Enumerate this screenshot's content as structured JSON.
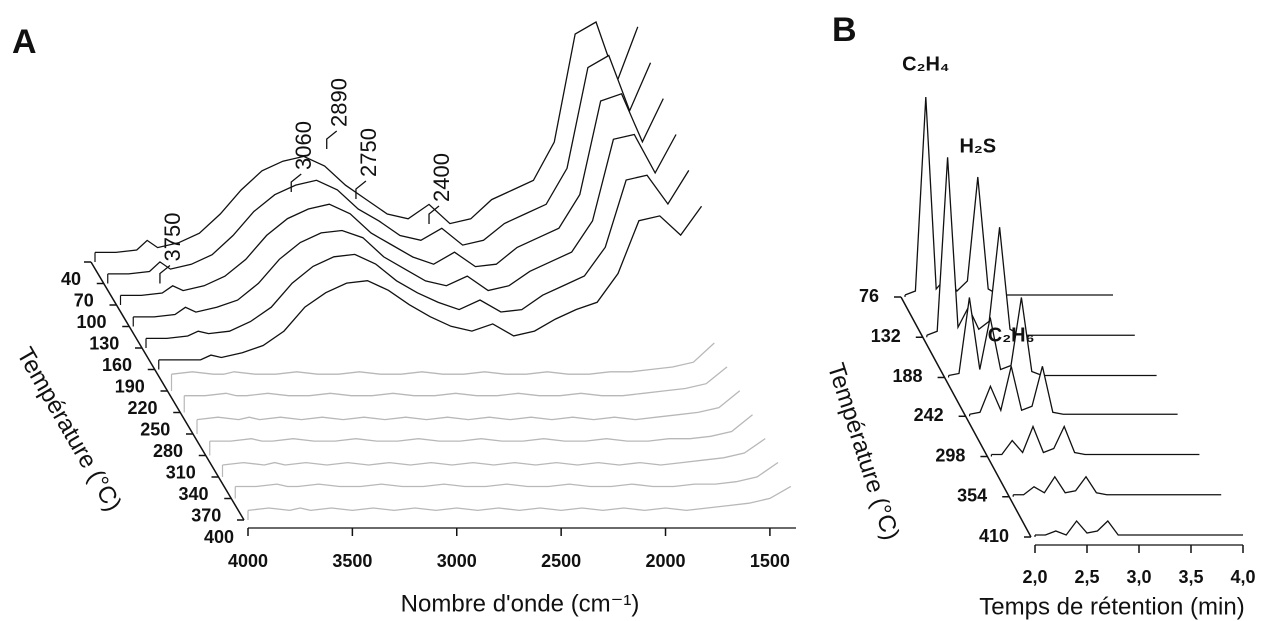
{
  "chart_data": [
    {
      "type": "waterfall",
      "title": "A",
      "xlabel": "Nombre d'onde (cm⁻¹)",
      "zlabel": "Température (°C)",
      "annotations": [
        {
          "text": "3750",
          "x": 3750
        },
        {
          "text": "3060",
          "x": 3060
        },
        {
          "text": "2890",
          "x": 2890
        },
        {
          "text": "2750",
          "x": 2750
        },
        {
          "text": "2400",
          "x": 2400
        }
      ],
      "x": [
        4000,
        3900,
        3800,
        3750,
        3700,
        3600,
        3500,
        3400,
        3300,
        3200,
        3100,
        3000,
        2900,
        2800,
        2700,
        2600,
        2500,
        2400,
        2300,
        2200,
        2100,
        2000,
        1900,
        1800,
        1700,
        1600,
        1500,
        1400
      ],
      "xlim": [
        4000,
        1375
      ],
      "xticks": [
        4000,
        3500,
        3000,
        2500,
        2000,
        1500
      ],
      "zlim": [
        40,
        400
      ],
      "zticks": [
        40,
        70,
        100,
        130,
        160,
        190,
        220,
        250,
        280,
        310,
        340,
        370,
        400
      ],
      "vlim": [
        0,
        100
      ],
      "series": [
        {
          "z": 40,
          "color": "#111111",
          "values": [
            4,
            4,
            5,
            9,
            6,
            8,
            12,
            20,
            30,
            38,
            42,
            44,
            40,
            32,
            26,
            20,
            18,
            24,
            16,
            18,
            26,
            30,
            34,
            50,
            95,
            100,
            75,
            98
          ]
        },
        {
          "z": 70,
          "color": "#111111",
          "values": [
            4,
            4,
            5,
            9,
            6,
            8,
            12,
            20,
            30,
            37,
            41,
            43,
            39,
            31,
            26,
            20,
            18,
            23,
            16,
            18,
            25,
            29,
            33,
            48,
            90,
            95,
            72,
            92
          ]
        },
        {
          "z": 100,
          "color": "#111111",
          "values": [
            4,
            4,
            5,
            8,
            6,
            8,
            12,
            19,
            29,
            36,
            40,
            42,
            38,
            30,
            25,
            20,
            17,
            22,
            16,
            17,
            24,
            28,
            32,
            46,
            85,
            88,
            68,
            86
          ]
        },
        {
          "z": 130,
          "color": "#111111",
          "values": [
            4,
            4,
            5,
            8,
            6,
            8,
            11,
            18,
            28,
            35,
            39,
            40,
            37,
            29,
            24,
            19,
            17,
            21,
            15,
            17,
            23,
            27,
            31,
            44,
            78,
            80,
            64,
            80
          ]
        },
        {
          "z": 160,
          "color": "#111111",
          "values": [
            4,
            4,
            5,
            7,
            6,
            7,
            11,
            17,
            27,
            34,
            38,
            39,
            35,
            28,
            23,
            19,
            16,
            20,
            15,
            16,
            22,
            26,
            30,
            42,
            70,
            72,
            60,
            74
          ]
        },
        {
          "z": 190,
          "color": "#111111",
          "values": [
            4,
            4,
            4,
            6,
            5,
            7,
            10,
            16,
            26,
            32,
            36,
            37,
            33,
            27,
            22,
            18,
            16,
            19,
            14,
            16,
            21,
            25,
            28,
            40,
            62,
            64,
            56,
            68
          ]
        },
        {
          "z": 220,
          "color": "#b8b8b8",
          "values": [
            7,
            8,
            7,
            7,
            8,
            7,
            7,
            8,
            7,
            7,
            8,
            7,
            7,
            8,
            7,
            7,
            8,
            7,
            7,
            8,
            7,
            7,
            8,
            8,
            9,
            10,
            12,
            20
          ]
        },
        {
          "z": 250,
          "color": "#b8b8b8",
          "values": [
            7,
            7,
            8,
            7,
            7,
            8,
            7,
            7,
            8,
            7,
            7,
            8,
            7,
            7,
            8,
            7,
            7,
            8,
            7,
            7,
            8,
            7,
            7,
            8,
            9,
            10,
            12,
            19
          ]
        },
        {
          "z": 280,
          "color": "#b8b8b8",
          "values": [
            6,
            7,
            6,
            7,
            6,
            7,
            6,
            7,
            6,
            7,
            6,
            7,
            6,
            7,
            6,
            7,
            6,
            7,
            6,
            7,
            6,
            7,
            6,
            7,
            8,
            9,
            11,
            18
          ]
        },
        {
          "z": 310,
          "color": "#b8b8b8",
          "values": [
            6,
            6,
            7,
            6,
            6,
            7,
            6,
            6,
            7,
            6,
            6,
            7,
            6,
            6,
            7,
            6,
            6,
            7,
            6,
            6,
            7,
            6,
            6,
            7,
            7,
            8,
            10,
            17
          ]
        },
        {
          "z": 340,
          "color": "#b8b8b8",
          "values": [
            5,
            6,
            5,
            6,
            5,
            6,
            5,
            6,
            5,
            6,
            5,
            6,
            5,
            6,
            5,
            6,
            5,
            6,
            5,
            6,
            5,
            6,
            5,
            6,
            7,
            8,
            10,
            16
          ]
        },
        {
          "z": 370,
          "color": "#b8b8b8",
          "values": [
            5,
            5,
            6,
            5,
            5,
            6,
            5,
            5,
            6,
            5,
            5,
            6,
            5,
            5,
            6,
            5,
            5,
            6,
            5,
            5,
            6,
            5,
            5,
            6,
            6,
            7,
            9,
            15
          ]
        },
        {
          "z": 400,
          "color": "#b8b8b8",
          "values": [
            4,
            5,
            4,
            5,
            4,
            5,
            4,
            5,
            4,
            5,
            4,
            5,
            4,
            5,
            4,
            5,
            4,
            5,
            4,
            5,
            4,
            5,
            4,
            5,
            6,
            7,
            9,
            14
          ]
        }
      ]
    },
    {
      "type": "waterfall",
      "title": "B",
      "xlabel": "Temps de rétention (min)",
      "zlabel": "Température (°C)",
      "annotations": [
        {
          "text": "C₂H₄",
          "x": 2.2
        },
        {
          "text": "H₂S",
          "x": 2.7
        },
        {
          "text": "C₂H₆",
          "x": 2.4
        }
      ],
      "x": [
        2.0,
        2.1,
        2.2,
        2.3,
        2.4,
        2.5,
        2.6,
        2.7,
        2.8,
        2.9,
        3.0,
        3.1,
        3.2,
        3.3,
        3.4,
        3.5,
        3.6,
        3.7,
        3.8,
        3.9,
        4.0
      ],
      "xlim": [
        2.0,
        4.0
      ],
      "xticks": [
        {
          "value": 2.0,
          "label": "2,0"
        },
        {
          "value": 2.5,
          "label": "2,5"
        },
        {
          "value": 3.0,
          "label": "3,0"
        },
        {
          "value": 3.5,
          "label": "3,5"
        },
        {
          "value": 4.0,
          "label": "4,0"
        }
      ],
      "zlim": [
        76,
        410
      ],
      "zticks": [
        76,
        132,
        188,
        242,
        298,
        354,
        410
      ],
      "vlim": [
        0,
        100
      ],
      "series": [
        {
          "z": 76,
          "color": "#111111",
          "values": [
            1,
            3,
            100,
            4,
            10,
            3,
            8,
            60,
            4,
            1,
            1,
            1,
            1,
            1,
            1,
            1,
            1,
            1,
            1,
            1,
            1
          ]
        },
        {
          "z": 132,
          "color": "#111111",
          "values": [
            1,
            3,
            90,
            5,
            15,
            4,
            8,
            55,
            4,
            1,
            1,
            1,
            1,
            1,
            1,
            1,
            1,
            1,
            1,
            1,
            1
          ]
        },
        {
          "z": 188,
          "color": "#111111",
          "values": [
            1,
            2,
            40,
            4,
            30,
            4,
            6,
            40,
            3,
            1,
            1,
            1,
            1,
            1,
            1,
            1,
            1,
            1,
            1,
            1,
            1
          ]
        },
        {
          "z": 242,
          "color": "#111111",
          "values": [
            1,
            2,
            15,
            3,
            25,
            3,
            5,
            25,
            2,
            1,
            1,
            1,
            1,
            1,
            1,
            1,
            1,
            1,
            1,
            1,
            1
          ]
        },
        {
          "z": 298,
          "color": "#111111",
          "values": [
            1,
            1,
            8,
            2,
            15,
            2,
            4,
            15,
            2,
            1,
            1,
            1,
            1,
            1,
            1,
            1,
            1,
            1,
            1,
            1,
            1
          ]
        },
        {
          "z": 354,
          "color": "#111111",
          "values": [
            1,
            1,
            5,
            2,
            10,
            2,
            3,
            10,
            2,
            1,
            1,
            1,
            1,
            1,
            1,
            1,
            1,
            1,
            1,
            1,
            1
          ]
        },
        {
          "z": 410,
          "color": "#111111",
          "values": [
            1,
            1,
            3,
            1,
            8,
            2,
            3,
            8,
            1,
            1,
            1,
            1,
            1,
            1,
            1,
            1,
            1,
            1,
            1,
            1,
            1
          ]
        }
      ]
    }
  ]
}
